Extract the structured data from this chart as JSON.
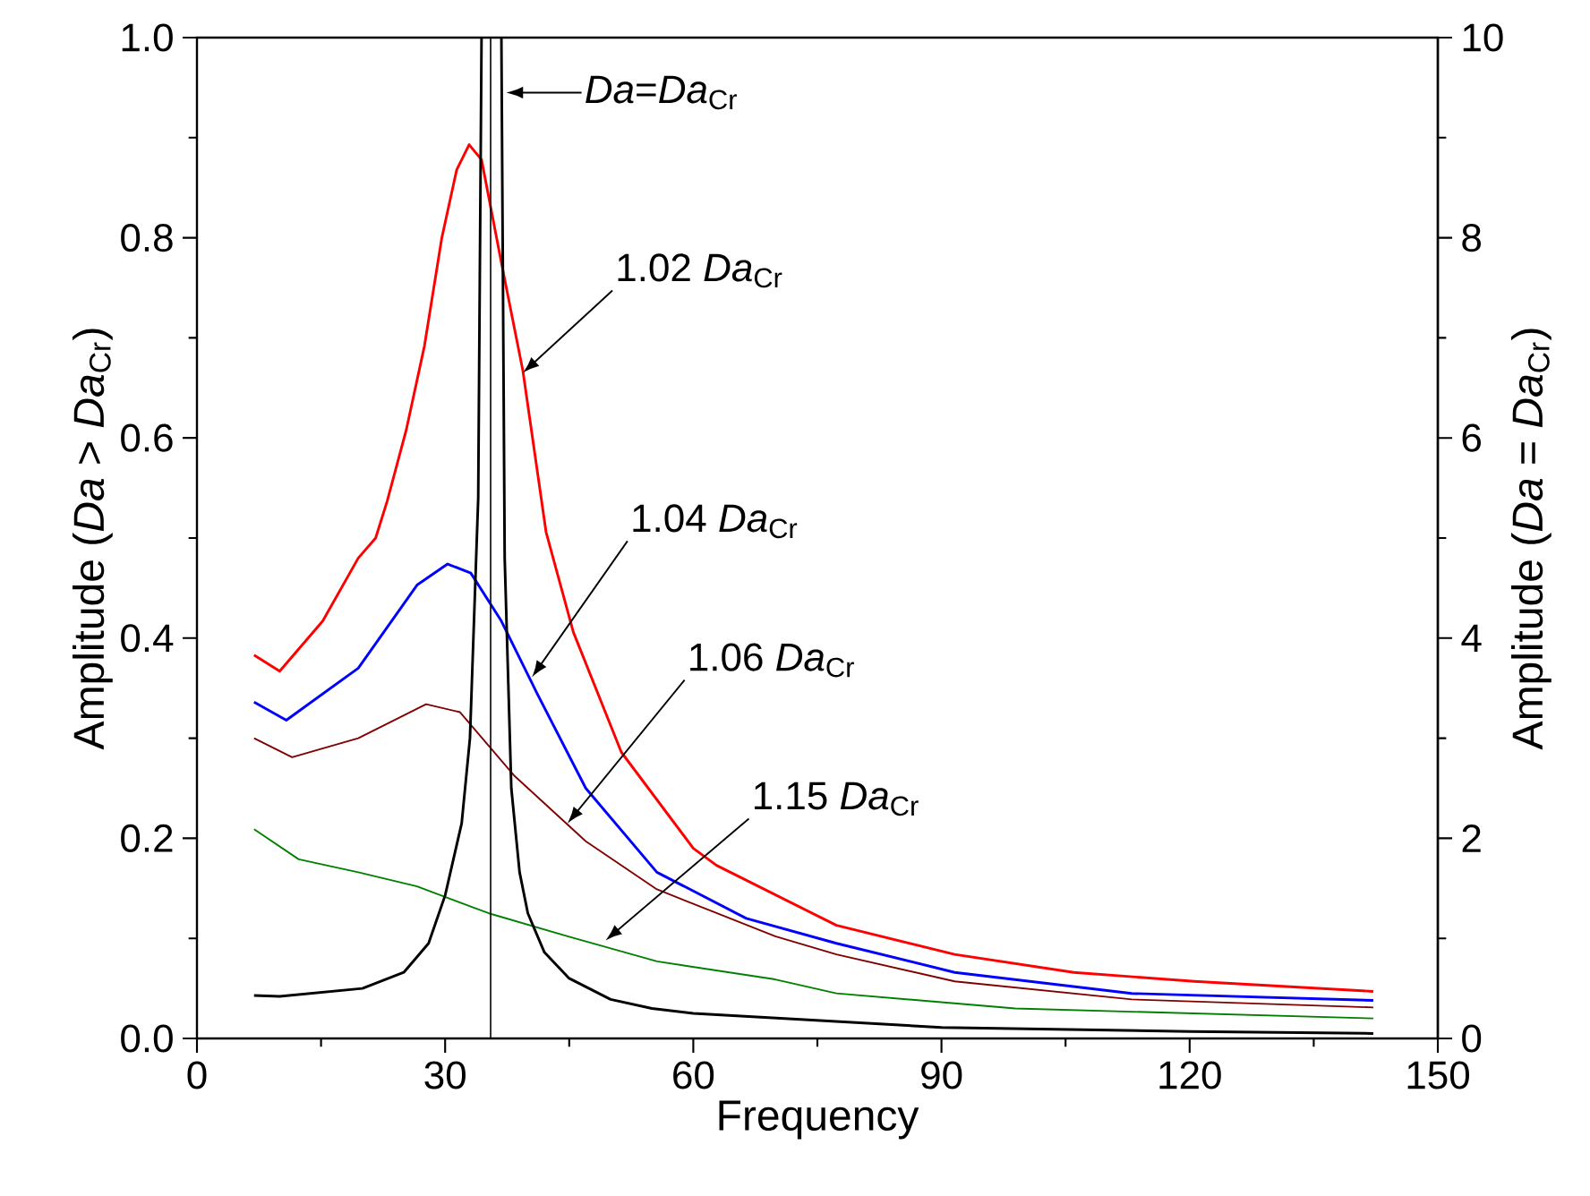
{
  "chart_data": {
    "type": "line",
    "xlabel": "Frequency",
    "ylabel": "Amplitude (*Da* > *Da*$_{Cr}$)",
    "y2label": "Amplitude (*Da* = *Da*$_{Cr}$)",
    "xlim": [
      0,
      150
    ],
    "xticks": [
      0,
      30,
      60,
      90,
      120,
      150
    ],
    "ylim": [
      0,
      1
    ],
    "yticks": [
      {
        "value": 0,
        "label": "0.0"
      },
      {
        "value": 0.2,
        "label": "0.2"
      },
      {
        "value": 0.4,
        "label": "0.4"
      },
      {
        "value": 0.6,
        "label": "0.6"
      },
      {
        "value": 0.8,
        "label": "0.8"
      },
      {
        "value": 1,
        "label": "1.0"
      }
    ],
    "y2lim": [
      0,
      10
    ],
    "y2ticks": [
      0,
      2,
      4,
      6,
      8,
      10
    ],
    "series": [
      {
        "color": "#ff0000",
        "x": [
          6.9,
          10,
          15.2,
          19.5,
          21.6,
          23,
          25.3,
          27.5,
          29.6,
          31.4,
          32.9,
          34.4,
          36.8,
          39.4,
          42.2,
          45.5,
          51.3,
          60,
          62.8,
          77.3,
          91.6,
          106,
          120.6,
          142.2
        ],
        "values": [
          0.383,
          0.367,
          0.417,
          0.48,
          0.5,
          0.537,
          0.608,
          0.692,
          0.8,
          0.868,
          0.893,
          0.878,
          0.775,
          0.667,
          0.506,
          0.406,
          0.286,
          0.19,
          0.173,
          0.113,
          0.084,
          0.066,
          0.057,
          0.047
        ]
      },
      {
        "color": "#0000ff",
        "x": [
          6.9,
          10.8,
          19.5,
          26.6,
          30.3,
          33.1,
          36.8,
          41.1,
          47,
          55.6,
          66.4,
          77.3,
          91.6,
          113,
          142.2
        ],
        "values": [
          0.336,
          0.318,
          0.37,
          0.453,
          0.474,
          0.465,
          0.417,
          0.345,
          0.25,
          0.166,
          0.12,
          0.095,
          0.066,
          0.045,
          0.038
        ]
      },
      {
        "color": "#800000",
        "x": [
          6.9,
          11.5,
          19.5,
          27.7,
          31.8,
          38.3,
          47,
          55.6,
          69.9,
          77.3,
          91.6,
          113,
          142.2
        ],
        "values": [
          0.3,
          0.281,
          0.3,
          0.334,
          0.326,
          0.263,
          0.197,
          0.149,
          0.102,
          0.084,
          0.057,
          0.039,
          0.031
        ]
      },
      {
        "color": "#008000",
        "x": [
          6.9,
          12.3,
          19.5,
          26.6,
          35.3,
          44.8,
          55.6,
          69.9,
          77.3,
          98.9,
          142.2
        ],
        "values": [
          0.209,
          0.179,
          0.166,
          0.152,
          0.125,
          0.102,
          0.077,
          0.059,
          0.045,
          0.03,
          0.02
        ]
      },
      {
        "color": "#000000",
        "axis": "y2",
        "x": [
          6.9,
          10,
          20,
          25,
          28,
          30,
          32,
          33,
          34,
          34.4,
          35.5,
          36.8,
          37.2,
          38,
          39,
          40,
          42,
          45,
          50,
          55,
          60,
          90,
          120,
          142.2
        ],
        "values": [
          0.43,
          0.42,
          0.5,
          0.66,
          0.95,
          1.43,
          2.15,
          3.0,
          5.4,
          10,
          null,
          10,
          4.8,
          2.5,
          1.66,
          1.25,
          0.86,
          0.6,
          0.39,
          0.3,
          0.25,
          0.11,
          0.07,
          0.05
        ]
      }
    ],
    "ref_lines": [
      {
        "axis": "x",
        "value": 35.5,
        "color": "#000000"
      }
    ],
    "annotations": [
      {
        "text": "*Da*=*Da*$_{Cr}$",
        "x": 37.4,
        "y": 0.945
      },
      {
        "text": "1.02 *Da*$_{Cr}$",
        "x": 39.4,
        "y": 0.665
      },
      {
        "text": "1.04 *Da*$_{Cr}$",
        "x": 40.5,
        "y": 0.361
      },
      {
        "text": "1.06 *Da*$_{Cr}$",
        "x": 44.8,
        "y": 0.215
      },
      {
        "text": "1.15 *Da*$_{Cr}$",
        "x": 49.4,
        "y": 0.098
      }
    ]
  }
}
